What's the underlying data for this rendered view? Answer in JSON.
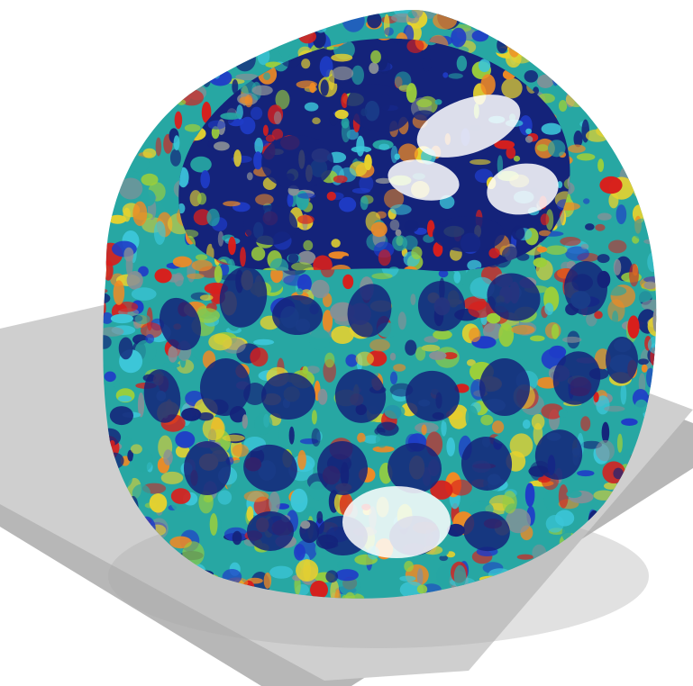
{
  "scene": {
    "subject": "porous-lattice-sphere",
    "palette": {
      "red": "#d81f1c",
      "orange": "#f08a24",
      "yellow": "#e6d22e",
      "lime": "#9ccf3a",
      "cyan": "#3cc6d8",
      "teal": "#27a7a3",
      "blue": "#1f3cc7",
      "navy": "#14237a",
      "grey": "#8a8f96"
    },
    "base_plate": {
      "top_color": "#cfcfcf",
      "top_highlight": "#e2e2e2",
      "edge_color": "#b7b7b7",
      "shadow_color": "#a9a9a9"
    },
    "background": "#ffffff"
  }
}
